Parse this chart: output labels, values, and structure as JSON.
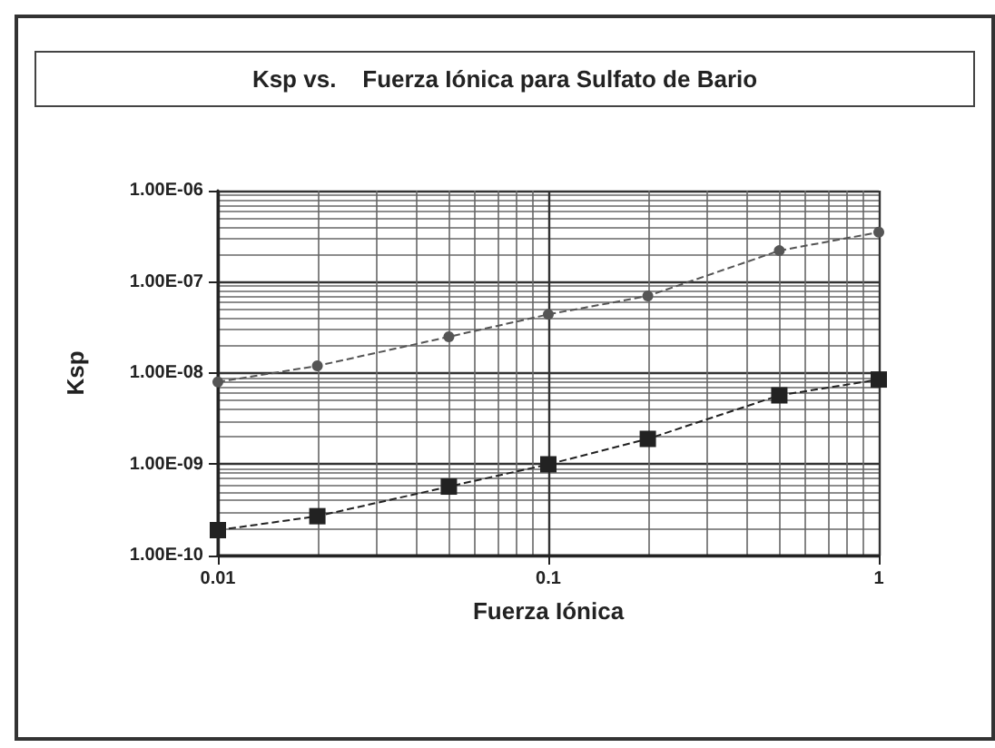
{
  "chart_data": {
    "type": "line",
    "title": "Ksp vs.    Fuerza Iónica para Sulfato de Bario",
    "xlabel": "Fuerza Iónica",
    "ylabel": "Ksp",
    "log": "xy",
    "grid": true,
    "line_style": "dashed",
    "xlim": [
      0.01,
      1
    ],
    "xticks": [
      0.01,
      0.1,
      1
    ],
    "ylim": [
      1e-10,
      1e-06
    ],
    "yticks": [
      {
        "value": 1e-10,
        "label": "1.00E-10"
      },
      {
        "value": 1e-09,
        "label": "1.00E-09"
      },
      {
        "value": 1e-08,
        "label": "1.00E-08"
      },
      {
        "value": 1e-07,
        "label": "1.00E-07"
      },
      {
        "value": 1e-06,
        "label": "1.00E-06"
      }
    ],
    "x": [
      0.01,
      0.02,
      0.05,
      0.1,
      0.2,
      0.5,
      1
    ],
    "series": [
      {
        "color": "#222222",
        "marker": "square",
        "values": [
          1.9e-10,
          2.7e-10,
          5.7e-10,
          1e-09,
          1.9e-09,
          5.7e-09,
          8.5e-09
        ]
      },
      {
        "color": "#555555",
        "marker": "circle",
        "values": [
          8e-09,
          1.2e-08,
          2.5e-08,
          4.4e-08,
          7e-08,
          2.2e-07,
          3.5e-07
        ]
      }
    ]
  }
}
